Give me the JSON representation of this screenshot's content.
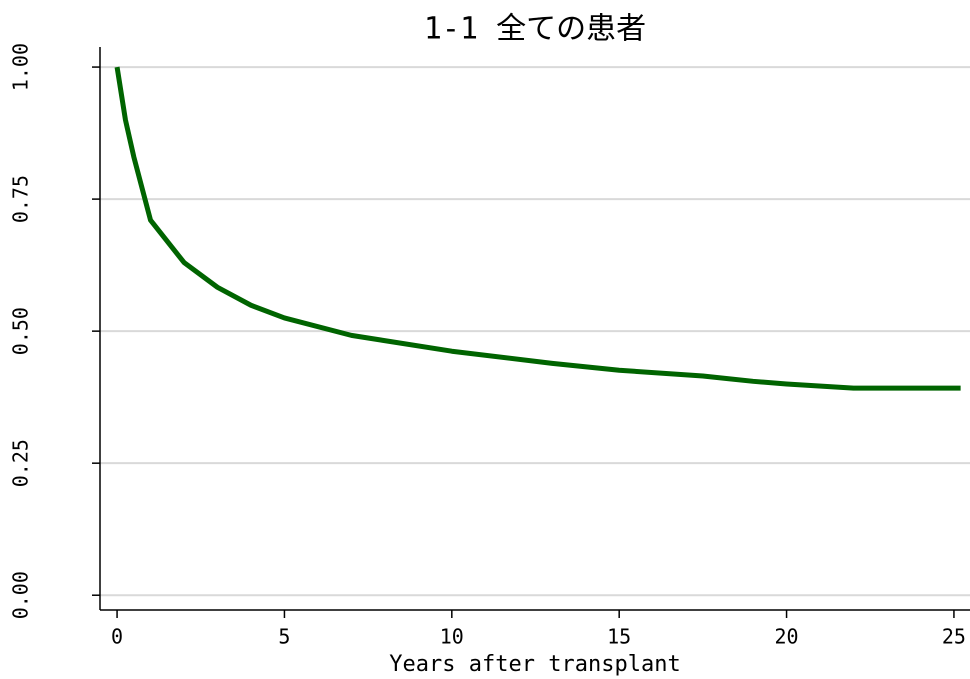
{
  "chart_data": {
    "type": "line",
    "title": "1-1 全ての患者",
    "x_label": "Years after transplant",
    "x": [
      0,
      0.25,
      0.5,
      1,
      2,
      3,
      4,
      5,
      7,
      10,
      13,
      15,
      17.5,
      19,
      20,
      22,
      25.2
    ],
    "series": [
      {
        "color": "#006400",
        "values": [
          1.0,
          0.9,
          0.83,
          0.71,
          0.63,
          0.583,
          0.549,
          0.525,
          0.492,
          0.462,
          0.439,
          0.426,
          0.415,
          0.405,
          0.4,
          0.392,
          0.392
        ]
      }
    ],
    "xlim": [
      -0.51,
      25.48
    ],
    "xticks": [
      0,
      5,
      10,
      15,
      20,
      25
    ],
    "ylim": [
      -0.028,
      1.038
    ],
    "yticks": [
      {
        "value": 0,
        "label": "0.00"
      },
      0.25,
      {
        "value": 0.5,
        "label": "0.50"
      },
      0.75,
      {
        "value": 1,
        "label": "1.00"
      }
    ],
    "grid": true
  }
}
